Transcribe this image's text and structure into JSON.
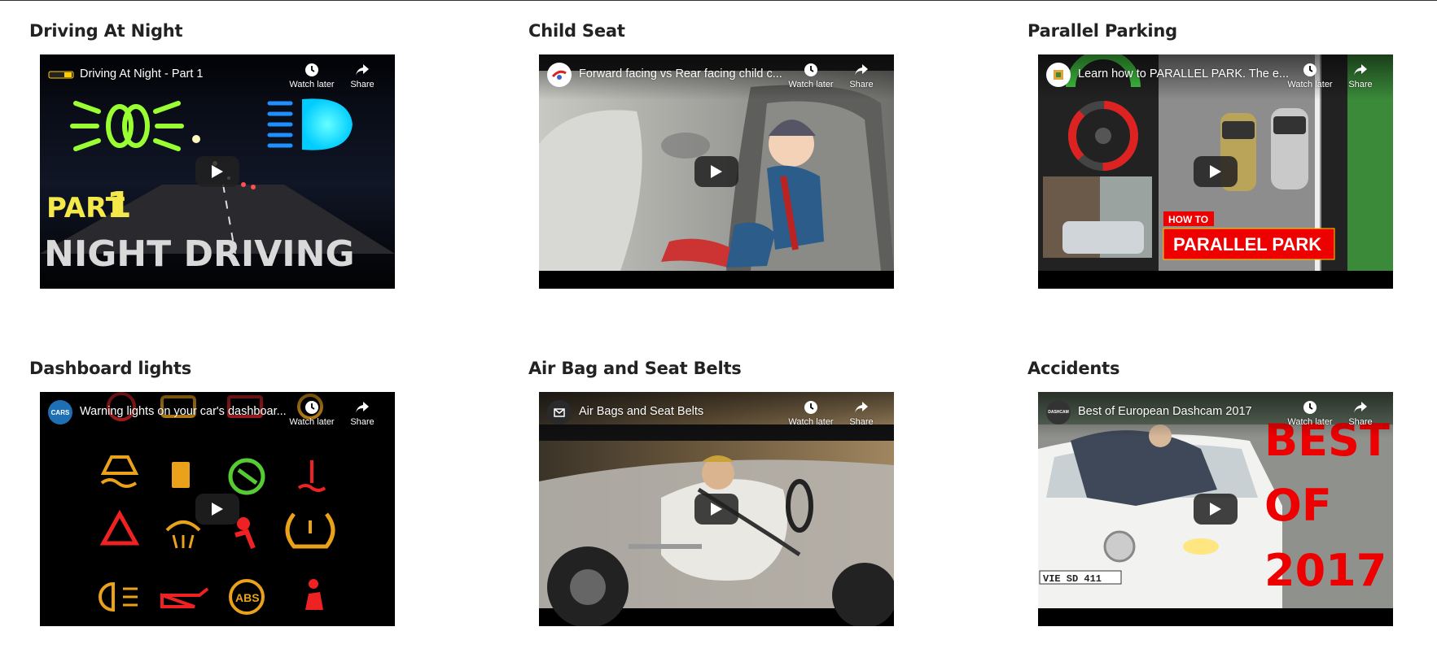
{
  "videos": [
    {
      "section_title": "Driving At Night",
      "video_title": "Driving At Night - Part 1",
      "channel_icon": "channel-logo",
      "thumb_text_1": "PART",
      "thumb_text_2": "1",
      "thumb_text_3": "NIGHT DRIVING"
    },
    {
      "section_title": "Child Seat",
      "video_title": "Forward facing vs Rear facing child c...",
      "channel_icon": "channel-logo"
    },
    {
      "section_title": "Parallel Parking",
      "video_title": "Learn how to PARALLEL PARK. The e...",
      "channel_icon": "channel-logo",
      "thumb_text_1": "HOW TO",
      "thumb_text_2": "PARALLEL PARK"
    },
    {
      "section_title": "Dashboard lights",
      "video_title": "Warning lights on your car's dashboar...",
      "channel_icon": "channel-logo",
      "channel_text": "CARS"
    },
    {
      "section_title": "Air Bag and Seat Belts",
      "video_title": "Air Bags and Seat Belts",
      "channel_icon": "channel-logo"
    },
    {
      "section_title": "Accidents",
      "video_title": "Best of European Dashcam 2017",
      "channel_icon": "channel-logo",
      "channel_text": "DASHCAM",
      "thumb_text_1": "BEST",
      "thumb_text_2": "OF",
      "thumb_text_3": "2017",
      "thumb_text_4": "VIE SD 411"
    }
  ],
  "controls": {
    "watch_later_label": "Watch later",
    "share_label": "Share"
  },
  "colors": {
    "player_bg": "#000000",
    "title_text": "#222222",
    "control_text": "#ffffff"
  }
}
